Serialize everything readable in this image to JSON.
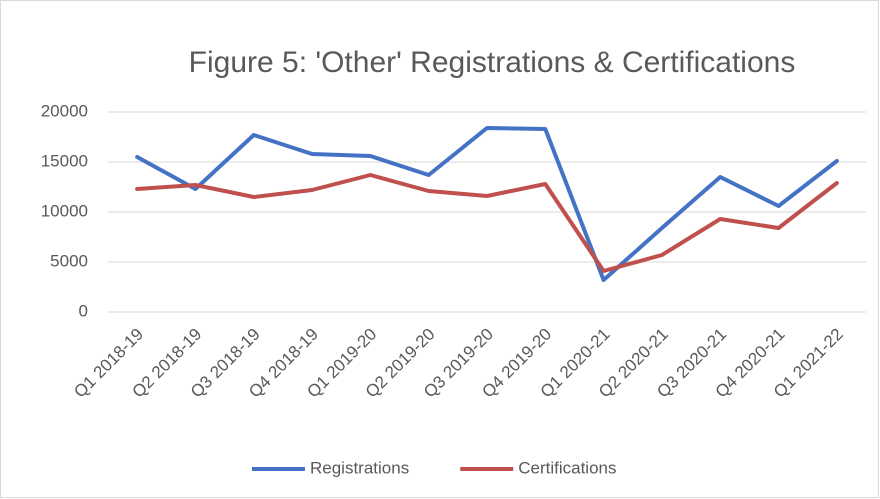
{
  "chart_data": {
    "type": "line",
    "title": "Figure 5: 'Other' Registrations & Certifications",
    "categories": [
      "Q1 2018-19",
      "Q2 2018-19",
      "Q3 2018-19",
      "Q4 2018-19",
      "Q1 2019-20",
      "Q2 2019-20",
      "Q3 2019-20",
      "Q4 2019-20",
      "Q1 2020-21",
      "Q2 2020-21",
      "Q3 2020-21",
      "Q4 2020-21",
      "Q1 2021-22"
    ],
    "series": [
      {
        "name": "Registrations",
        "color": "#4472c4",
        "values": [
          15500,
          12300,
          17700,
          15800,
          15600,
          13700,
          18400,
          18300,
          3200,
          8400,
          13500,
          10600,
          15100
        ]
      },
      {
        "name": "Certifications",
        "color": "#c0504d",
        "values": [
          12300,
          12700,
          11500,
          12200,
          13700,
          12100,
          11600,
          12800,
          4100,
          5700,
          9300,
          8400,
          12900
        ]
      }
    ],
    "ylim": [
      0,
      20000
    ],
    "yticks": [
      0,
      5000,
      10000,
      15000,
      20000
    ],
    "grid": true,
    "legend": "bottom"
  }
}
